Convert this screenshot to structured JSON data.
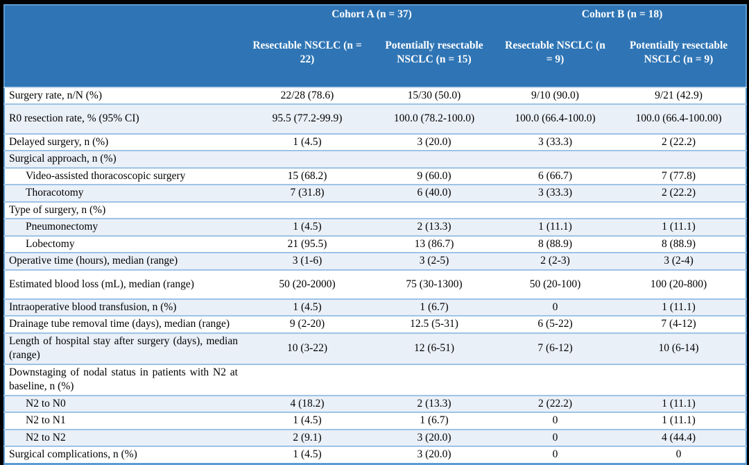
{
  "table": {
    "header": {
      "groups": [
        {
          "label": "Cohort A (n = 37)"
        },
        {
          "label": "Cohort B (n = 18)"
        }
      ],
      "columns": [
        "Resectable NSCLC (n = 22)",
        "Potentially resectable NSCLC (n = 15)",
        "Resectable NSCLC (n = 9)",
        "Potentially resectable NSCLC (n = 9)"
      ]
    },
    "rows": [
      {
        "label": "Surgery rate, n/N (%)",
        "values": [
          "22/28 (78.6)",
          "15/30 (50.0)",
          "9/10 (90.0)",
          "9/21 (42.9)"
        ]
      },
      {
        "label": "R0 resection rate, % (95% CI)",
        "tall": true,
        "values": [
          "95.5 (77.2-99.9)",
          "100.0 (78.2-100.0)",
          "100.0 (66.4-100.0)",
          "100.0 (66.4-100.00)"
        ]
      },
      {
        "label": "Delayed surgery, n (%)",
        "values": [
          "1 (4.5)",
          "3 (20.0)",
          "3 (33.3)",
          "2 (22.2)"
        ]
      },
      {
        "label": "Surgical approach, n (%)",
        "values": [
          "",
          "",
          "",
          ""
        ]
      },
      {
        "label": "Video-assisted thoracoscopic surgery",
        "indent": true,
        "values": [
          "15 (68.2)",
          "9 (60.0)",
          "6 (66.7)",
          "7 (77.8)"
        ]
      },
      {
        "label": "Thoracotomy",
        "indent": true,
        "values": [
          "7 (31.8)",
          "6 (40.0)",
          "3 (33.3)",
          "2 (22.2)"
        ]
      },
      {
        "label": "Type of surgery, n (%)",
        "values": [
          "",
          "",
          "",
          ""
        ]
      },
      {
        "label": "Pneumonectomy",
        "indent": true,
        "values": [
          "1 (4.5)",
          "2 (13.3)",
          "1 (11.1)",
          "1 (11.1)"
        ]
      },
      {
        "label": "Lobectomy",
        "indent": true,
        "values": [
          "21 (95.5)",
          "13 (86.7)",
          "8 (88.9)",
          "8 (88.9)"
        ]
      },
      {
        "label": "Operative time (hours), median (range)",
        "values": [
          "3 (1-6)",
          "3 (2-5)",
          "2 (2-3)",
          "3 (2-4)"
        ]
      },
      {
        "label": "Estimated blood loss (mL), median (range)",
        "tall": true,
        "values": [
          "50 (20-2000)",
          "75 (30-1300)",
          "50 (20-100)",
          "100 (20-800)"
        ]
      },
      {
        "label": "Intraoperative blood transfusion, n (%)",
        "values": [
          "1 (4.5)",
          "1 (6.7)",
          "0",
          "1 (11.1)"
        ]
      },
      {
        "label": "Drainage tube removal time (days), median (range)",
        "values": [
          "9 (2-20)",
          "12.5 (5-31)",
          "6 (5-22)",
          "7 (4-12)"
        ]
      },
      {
        "label": "Length of hospital stay after surgery (days), median (range)",
        "values": [
          "10 (3-22)",
          "12 (6-51)",
          "7 (6-12)",
          "10 (6-14)"
        ]
      },
      {
        "label": "Downstaging of nodal status in patients with N2 at baseline, n (%)",
        "values": [
          "",
          "",
          "",
          ""
        ]
      },
      {
        "label": "N2 to N0",
        "indent": true,
        "values": [
          "4 (18.2)",
          "2 (13.3)",
          "2 (22.2)",
          "1 (11.1)"
        ]
      },
      {
        "label": "N2 to N1",
        "indent": true,
        "values": [
          "1 (4.5)",
          "1 (6.7)",
          "0",
          "1 (11.1)"
        ]
      },
      {
        "label": "N2 to N2",
        "indent": true,
        "values": [
          "2 (9.1)",
          "3 (20.0)",
          "0",
          "4 (44.4)"
        ]
      },
      {
        "label": "Surgical complications, n (%)",
        "values": [
          "1 (4.5)",
          "3 (20.0)",
          "0",
          "0"
        ]
      }
    ],
    "colors": {
      "header_bg": "#2F75B5",
      "header_text": "#FFFFFF",
      "row_alt_bg": "#EAF0F8",
      "row_bg": "#FFFFFF",
      "row_border": "#9DC3E6",
      "outer_border": "#5B9BD5",
      "frame": "#000000",
      "body_text": "#000000"
    }
  }
}
